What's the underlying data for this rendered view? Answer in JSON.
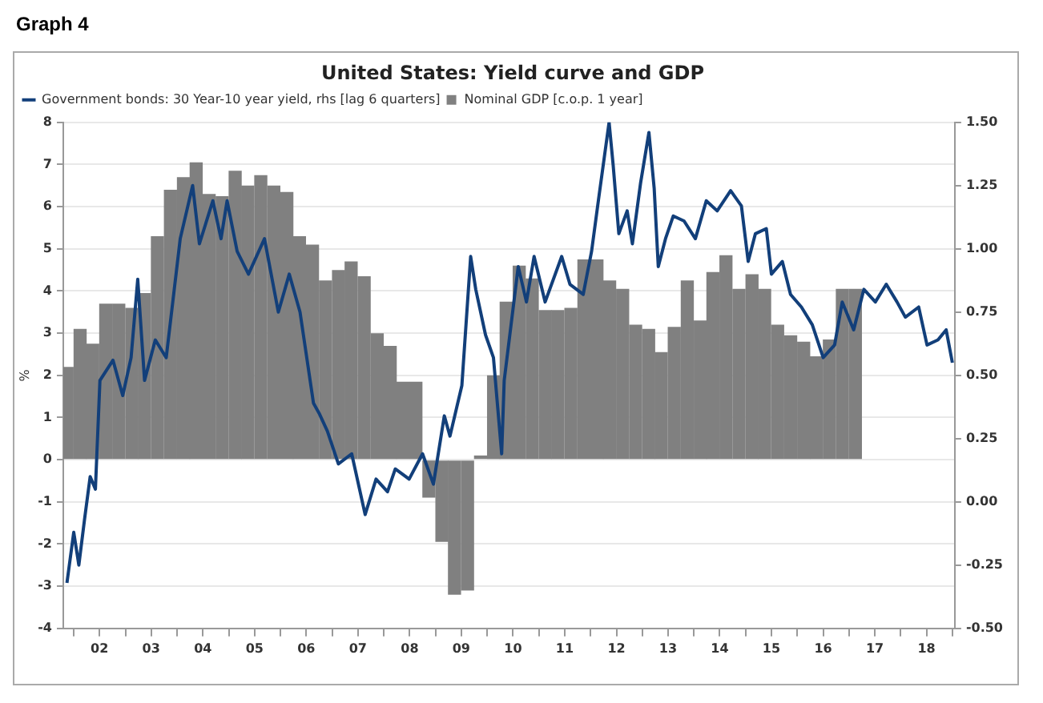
{
  "chart_data": {
    "type": "bar",
    "title": "United States: Yield curve and GDP",
    "ylabel": "%",
    "annotations": [
      "Graph 4"
    ],
    "legend": "top left",
    "grid": "y",
    "xlim": [
      "2001-10-19",
      "2019-01-18"
    ],
    "xticks": [
      {
        "value": "2002-01-01",
        "label": null
      },
      {
        "value": "2002-07-02",
        "label": "02"
      },
      {
        "value": "2003-01-01",
        "label": null
      },
      {
        "value": "2003-07-02",
        "label": "03"
      },
      {
        "value": "2004-01-01",
        "label": null
      },
      {
        "value": "2004-07-02",
        "label": "04"
      },
      {
        "value": "2005-01-01",
        "label": null
      },
      {
        "value": "2005-07-02",
        "label": "05"
      },
      {
        "value": "2006-01-01",
        "label": null
      },
      {
        "value": "2006-07-02",
        "label": "06"
      },
      {
        "value": "2007-01-01",
        "label": null
      },
      {
        "value": "2007-07-02",
        "label": "07"
      },
      {
        "value": "2008-01-01",
        "label": null
      },
      {
        "value": "2008-07-02",
        "label": "08"
      },
      {
        "value": "2009-01-01",
        "label": null
      },
      {
        "value": "2009-07-02",
        "label": "09"
      },
      {
        "value": "2010-01-01",
        "label": null
      },
      {
        "value": "2010-07-02",
        "label": "10"
      },
      {
        "value": "2011-01-01",
        "label": null
      },
      {
        "value": "2011-07-02",
        "label": "11"
      },
      {
        "value": "2012-01-01",
        "label": null
      },
      {
        "value": "2012-07-02",
        "label": "12"
      },
      {
        "value": "2013-01-01",
        "label": null
      },
      {
        "value": "2013-07-02",
        "label": "13"
      },
      {
        "value": "2014-01-01",
        "label": null
      },
      {
        "value": "2014-07-02",
        "label": "14"
      },
      {
        "value": "2015-01-01",
        "label": null
      },
      {
        "value": "2015-07-02",
        "label": "15"
      },
      {
        "value": "2016-01-01",
        "label": null
      },
      {
        "value": "2016-07-02",
        "label": "16"
      },
      {
        "value": "2017-01-01",
        "label": null
      },
      {
        "value": "2017-07-02",
        "label": "17"
      },
      {
        "value": "2018-01-01",
        "label": null
      },
      {
        "value": "2018-07-02",
        "label": "18"
      },
      {
        "value": "2019-01-01",
        "label": null
      }
    ],
    "ylim": [
      -4,
      8
    ],
    "yticks": [
      -4,
      -3,
      -2,
      -1,
      0,
      1,
      2,
      3,
      4,
      5,
      6,
      7,
      8
    ],
    "y2lim": [
      -0.5,
      1.5
    ],
    "y2ticks": [
      {
        "value": -0.5,
        "label": "-0.50"
      },
      {
        "value": -0.25,
        "label": "-0.25"
      },
      {
        "value": 0,
        "label": "0.00"
      },
      {
        "value": 0.25,
        "label": "0.25"
      },
      {
        "value": 0.5,
        "label": "0.50"
      },
      {
        "value": 0.75,
        "label": "0.75"
      },
      {
        "value": 1,
        "label": "1.00"
      },
      {
        "value": 1.25,
        "label": "1.25"
      },
      {
        "value": 1.5,
        "label": "1.50"
      }
    ],
    "series": [
      {
        "name": "Government bonds: 30 Year-10 year yield, rhs [lag 6 quarters]",
        "type": "line",
        "axis": "y2",
        "color": "#123f7a",
        "x": [
          "2001-11-14",
          "2002-01-01",
          "2002-02-06",
          "2002-03-18",
          "2002-04-27",
          "2002-06-03",
          "2002-07-05",
          "2002-10-05",
          "2002-12-13",
          "2003-02-10",
          "2003-03-29",
          "2003-05-16",
          "2003-07-31",
          "2003-10-16",
          "2004-01-23",
          "2004-04-20",
          "2004-06-07",
          "2004-09-10",
          "2004-11-07",
          "2004-12-20",
          "2005-03-01",
          "2005-05-20",
          "2005-09-10",
          "2005-12-17",
          "2006-03-04",
          "2006-05-19",
          "2006-08-22",
          "2006-10-01",
          "2006-11-28",
          "2007-02-14",
          "2007-05-19",
          "2007-08-22",
          "2007-11-07",
          "2008-01-27",
          "2008-03-22",
          "2008-06-28",
          "2008-10-01",
          "2008-12-17",
          "2009-03-04",
          "2009-04-13",
          "2009-07-06",
          "2009-09-06",
          "2009-10-12",
          "2009-12-20",
          "2010-02-14",
          "2010-04-13",
          "2010-05-01",
          "2010-08-08",
          "2010-10-05",
          "2010-11-28",
          "2011-02-14",
          "2011-06-11",
          "2011-08-08",
          "2011-11-10",
          "2012-01-08",
          "2012-02-25",
          "2012-05-11",
          "2012-06-09",
          "2012-07-19",
          "2012-09-16",
          "2012-10-23",
          "2012-12-20",
          "2013-02-17",
          "2013-03-26",
          "2013-04-24",
          "2013-06-14",
          "2013-08-08",
          "2013-10-23",
          "2014-01-11",
          "2014-03-29",
          "2014-06-14",
          "2014-09-17",
          "2014-12-02",
          "2015-01-19",
          "2015-03-11",
          "2015-05-27",
          "2015-07-02",
          "2015-09-17",
          "2015-11-14",
          "2016-01-30",
          "2016-04-16",
          "2016-07-02",
          "2016-09-21",
          "2016-11-14",
          "2017-02-03",
          "2017-04-16",
          "2017-07-06",
          "2017-09-21",
          "2017-12-06",
          "2018-02-03",
          "2018-05-08",
          "2018-07-06",
          "2018-09-21",
          "2018-11-18",
          "2019-01-01"
        ],
        "values": [
          -0.32,
          -0.12,
          -0.25,
          -0.07,
          0.1,
          0.05,
          0.48,
          0.56,
          0.42,
          0.57,
          0.88,
          0.48,
          0.64,
          0.57,
          1.04,
          1.25,
          1.02,
          1.19,
          1.04,
          1.19,
          0.99,
          0.9,
          1.04,
          0.75,
          0.9,
          0.75,
          0.39,
          0.35,
          0.28,
          0.15,
          0.19,
          -0.05,
          0.09,
          0.04,
          0.13,
          0.09,
          0.19,
          0.07,
          0.34,
          0.26,
          0.46,
          0.97,
          0.84,
          0.66,
          0.57,
          0.19,
          0.48,
          0.93,
          0.79,
          0.97,
          0.79,
          0.97,
          0.86,
          0.82,
          0.99,
          1.19,
          1.5,
          1.33,
          1.06,
          1.15,
          1.02,
          1.26,
          1.46,
          1.24,
          0.93,
          1.04,
          1.13,
          1.11,
          1.04,
          1.19,
          1.15,
          1.23,
          1.17,
          0.95,
          1.06,
          1.08,
          0.9,
          0.95,
          0.82,
          0.77,
          0.7,
          0.57,
          0.62,
          0.79,
          0.68,
          0.84,
          0.79,
          0.86,
          0.79,
          0.73,
          0.77,
          0.62,
          0.64,
          0.68,
          0.55
        ]
      },
      {
        "name": "Nominal GDP [c.o.p. 1 year]",
        "color": "#808080",
        "x": [
          "2001-11-15",
          "2002-02-15",
          "2002-05-15",
          "2002-08-15",
          "2002-11-15",
          "2003-02-15",
          "2003-05-15",
          "2003-08-15",
          "2003-11-15",
          "2004-02-15",
          "2004-05-15",
          "2004-08-15",
          "2004-11-15",
          "2005-02-15",
          "2005-05-15",
          "2005-08-15",
          "2005-11-15",
          "2006-02-15",
          "2006-05-15",
          "2006-08-15",
          "2006-11-15",
          "2007-02-15",
          "2007-05-15",
          "2007-08-15",
          "2007-11-15",
          "2008-02-15",
          "2008-05-15",
          "2008-08-15",
          "2008-11-15",
          "2009-02-15",
          "2009-05-15",
          "2009-08-15",
          "2009-11-15",
          "2010-02-15",
          "2010-05-15",
          "2010-08-15",
          "2010-11-15",
          "2011-02-15",
          "2011-05-15",
          "2011-08-15",
          "2011-11-15",
          "2012-02-15",
          "2012-05-15",
          "2012-08-15",
          "2012-11-15",
          "2013-02-15",
          "2013-05-15",
          "2013-08-15",
          "2013-11-15",
          "2014-02-15",
          "2014-05-15",
          "2014-08-15",
          "2014-11-15",
          "2015-02-15",
          "2015-05-15",
          "2015-08-15",
          "2015-11-15",
          "2016-02-15",
          "2016-05-15",
          "2016-08-15",
          "2016-11-15",
          "2017-02-15"
        ],
        "values": [
          2.2,
          3.1,
          2.75,
          3.7,
          3.7,
          3.6,
          3.95,
          5.3,
          6.4,
          6.7,
          7.05,
          6.3,
          6.25,
          6.85,
          6.5,
          6.75,
          6.5,
          6.35,
          5.3,
          5.1,
          4.25,
          4.5,
          4.7,
          4.35,
          3.0,
          2.7,
          1.85,
          1.85,
          -0.9,
          -1.95,
          -3.2,
          -3.1,
          0.1,
          2.0,
          3.75,
          4.6,
          4.3,
          3.55,
          3.55,
          3.6,
          4.75,
          4.75,
          4.25,
          4.05,
          3.2,
          3.1,
          2.55,
          3.15,
          4.25,
          3.3,
          4.45,
          4.85,
          4.05,
          4.4,
          4.05,
          3.2,
          2.95,
          2.8,
          2.45,
          2.85,
          4.05,
          4.05
        ]
      }
    ]
  }
}
